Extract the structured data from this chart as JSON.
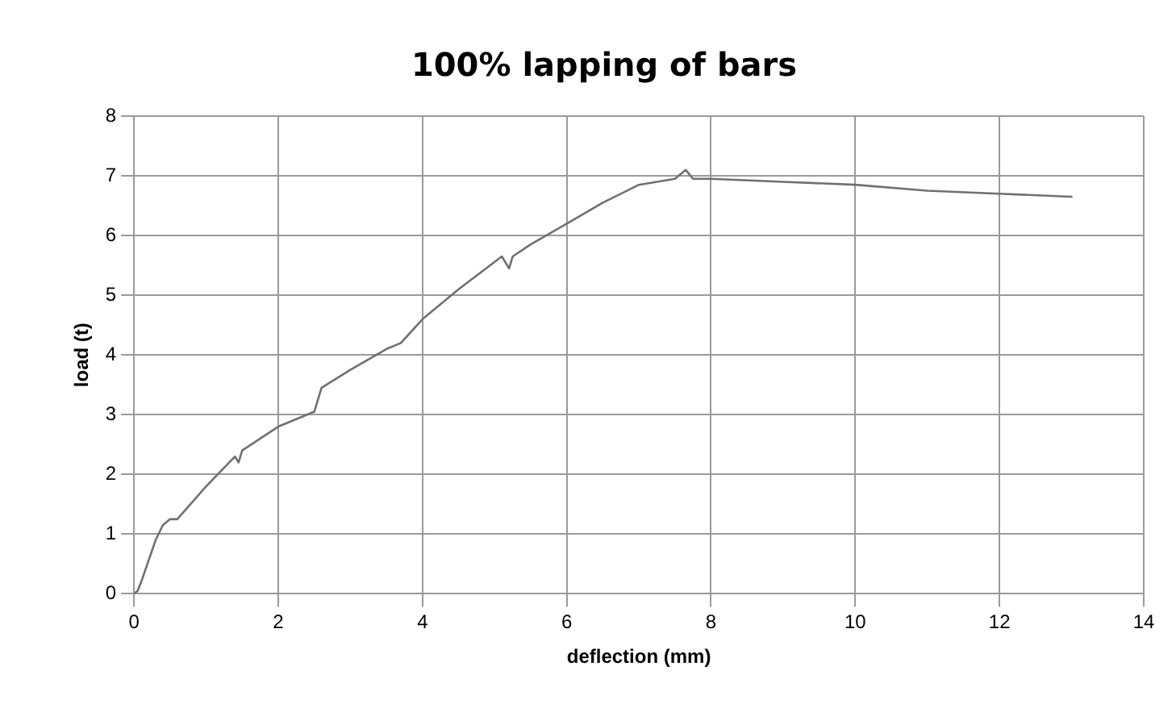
{
  "chart_data": {
    "type": "line",
    "title": "100% lapping of bars",
    "xlabel": "deflection (mm)",
    "ylabel": "load (t)",
    "series": [
      {
        "color": "#707070",
        "x": [
          0,
          0.05,
          0.1,
          0.3,
          0.4,
          0.5,
          0.6,
          1.0,
          1.4,
          1.45,
          1.5,
          2.0,
          2.4,
          2.5,
          2.6,
          3.0,
          3.5,
          3.7,
          4.0,
          4.5,
          5.1,
          5.2,
          5.25,
          5.5,
          6.0,
          6.5,
          7.0,
          7.5,
          7.65,
          7.75,
          8,
          9,
          10,
          11,
          12,
          13
        ],
        "values": [
          0,
          0.05,
          0.2,
          0.9,
          1.15,
          1.25,
          1.25,
          1.8,
          2.3,
          2.2,
          2.4,
          2.8,
          3.0,
          3.05,
          3.45,
          3.75,
          4.1,
          4.2,
          4.6,
          5.1,
          5.65,
          5.45,
          5.65,
          5.85,
          6.2,
          6.55,
          6.85,
          6.95,
          7.1,
          6.95,
          6.95,
          6.9,
          6.85,
          6.75,
          6.7,
          6.65
        ]
      }
    ],
    "xlim": [
      0,
      14
    ],
    "xticks": [
      0,
      2,
      4,
      6,
      8,
      10,
      12,
      14
    ],
    "ylim": [
      0,
      8
    ],
    "yticks": [
      0,
      1,
      2,
      3,
      4,
      5,
      6,
      7,
      8
    ],
    "grid": true,
    "legend": false,
    "marker": "none",
    "line_style": "solid"
  }
}
